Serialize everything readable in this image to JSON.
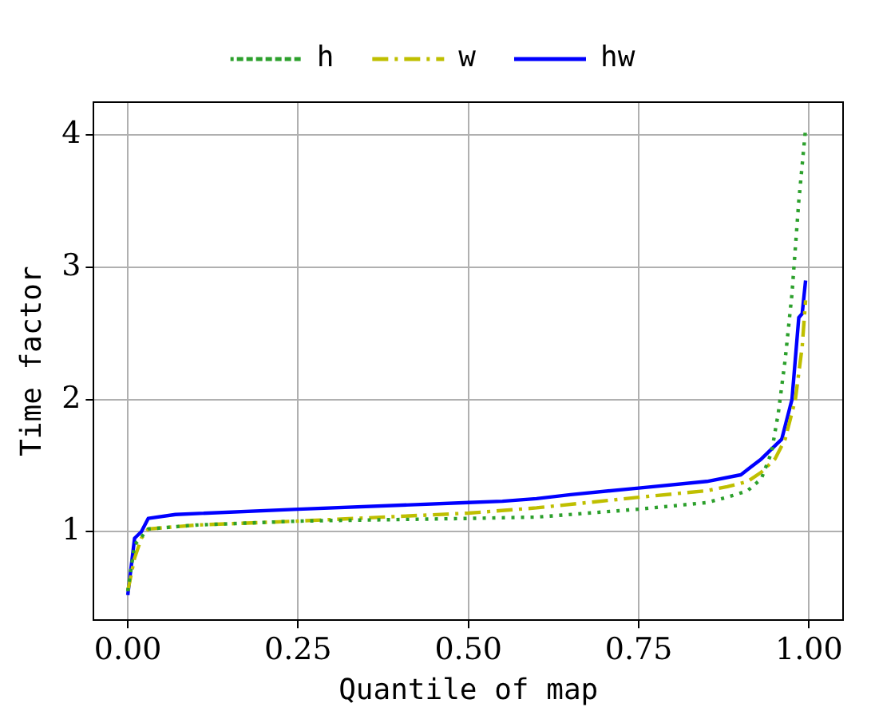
{
  "chart_data": {
    "type": "line",
    "xlabel": "Quantile of map",
    "ylabel": "Time factor",
    "xlim": [
      -0.05,
      1.05
    ],
    "xticks": [
      {
        "value": 0,
        "label": "0.00"
      },
      {
        "value": 0.25,
        "label": "0.25"
      },
      {
        "value": 0.5,
        "label": "0.50"
      },
      {
        "value": 0.75,
        "label": "0.75"
      },
      {
        "value": 1,
        "label": "1.00"
      }
    ],
    "ylim": [
      0.33,
      4.25
    ],
    "yticks": [
      1,
      2,
      3,
      4
    ],
    "grid": true,
    "legend": "top",
    "marker": "none",
    "series": [
      {
        "name": "h",
        "color": "#2ca02c",
        "line_style": "dotted",
        "x": [
          0,
          0.01,
          0.03,
          0.1,
          0.25,
          0.5,
          0.6,
          0.75,
          0.85,
          0.88,
          0.91,
          0.93,
          0.945,
          0.955,
          0.965,
          0.975,
          0.985,
          0.995
        ],
        "values": [
          0.55,
          0.9,
          1.02,
          1.05,
          1.08,
          1.1,
          1.11,
          1.17,
          1.22,
          1.26,
          1.31,
          1.4,
          1.6,
          1.9,
          2.3,
          2.8,
          3.5,
          4.05
        ]
      },
      {
        "name": "w",
        "color": "#bfbf00",
        "line_style": "dashdot",
        "x": [
          0,
          0.01,
          0.02,
          0.03,
          0.1,
          0.25,
          0.5,
          0.6,
          0.75,
          0.85,
          0.88,
          0.91,
          0.93,
          0.95,
          0.965,
          0.98,
          0.99,
          0.995
        ],
        "values": [
          0.55,
          0.8,
          0.95,
          1.02,
          1.05,
          1.08,
          1.14,
          1.18,
          1.26,
          1.31,
          1.34,
          1.38,
          1.45,
          1.55,
          1.7,
          2.0,
          2.4,
          2.75
        ]
      },
      {
        "name": "hw",
        "color": "#0000ff",
        "line_style": "solid",
        "x": [
          0,
          0.01,
          0.02,
          0.03,
          0.07,
          0.25,
          0.5,
          0.55,
          0.6,
          0.65,
          0.75,
          0.85,
          0.9,
          0.915,
          0.93,
          0.96,
          0.975,
          0.985,
          0.99,
          0.995
        ],
        "values": [
          0.52,
          0.95,
          1.0,
          1.1,
          1.13,
          1.17,
          1.22,
          1.23,
          1.25,
          1.28,
          1.33,
          1.38,
          1.43,
          1.49,
          1.55,
          1.7,
          2.0,
          2.62,
          2.65,
          2.9
        ]
      }
    ]
  }
}
